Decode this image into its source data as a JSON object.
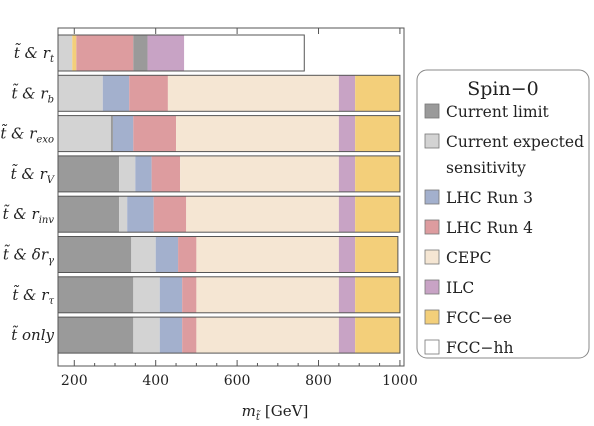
{
  "chart_data": {
    "type": "bar",
    "orientation": "horizontal-stacked",
    "xlabel": "m",
    "xlabel_sub": "t̃",
    "xlabel_unit": "[GeV]",
    "xlim": [
      160,
      1010
    ],
    "xticks": [
      200,
      400,
      600,
      800,
      1000
    ],
    "grid": false,
    "legend_position": "right",
    "legend": {
      "title": "Spin−0",
      "entries": [
        {
          "key": "current_limit",
          "label_lines": [
            "Current limit"
          ],
          "color": "#9a9a9a"
        },
        {
          "key": "current_expected",
          "label_lines": [
            "Current expected",
            "sensitivity"
          ],
          "color": "#d3d3d3"
        },
        {
          "key": "lhc_run3",
          "label_lines": [
            "LHC Run 3"
          ],
          "color": "#a3b0cd"
        },
        {
          "key": "lhc_run4",
          "label_lines": [
            "LHC Run 4"
          ],
          "color": "#dd9c9f"
        },
        {
          "key": "cepc",
          "label_lines": [
            "CEPC"
          ],
          "color": "#f5e6d3"
        },
        {
          "key": "ilc",
          "label_lines": [
            "ILC"
          ],
          "color": "#c8a3c5"
        },
        {
          "key": "fccee",
          "label_lines": [
            "FCC−ee"
          ],
          "color": "#f3cf7a"
        },
        {
          "key": "fcchh",
          "label_lines": [
            "FCC−hh"
          ],
          "color": "#ffffff"
        }
      ]
    },
    "rows": [
      {
        "label": {
          "main": "t̃ & r",
          "sub": "t"
        },
        "segments": [
          {
            "key": "current_expected",
            "from": 160,
            "to": 195
          },
          {
            "key": "fccee",
            "from": 195,
            "to": 205
          },
          {
            "key": "lhc_run4",
            "from": 205,
            "to": 345
          },
          {
            "key": "current_limit",
            "from": 345,
            "to": 380
          },
          {
            "key": "ilc",
            "from": 380,
            "to": 470
          },
          {
            "key": "fcchh",
            "from": 470,
            "to": 765
          }
        ]
      },
      {
        "label": {
          "main": "t̃ & r",
          "sub": "b"
        },
        "segments": [
          {
            "key": "current_expected",
            "from": 160,
            "to": 270
          },
          {
            "key": "lhc_run3",
            "from": 270,
            "to": 335
          },
          {
            "key": "lhc_run4",
            "from": 335,
            "to": 430
          },
          {
            "key": "cepc",
            "from": 430,
            "to": 850
          },
          {
            "key": "ilc",
            "from": 850,
            "to": 890
          },
          {
            "key": "fccee",
            "from": 890,
            "to": 1000
          }
        ]
      },
      {
        "label": {
          "main": "t̃ & r",
          "sub": "exo"
        },
        "segments": [
          {
            "key": "current_expected",
            "from": 160,
            "to": 290
          },
          {
            "key": "current_limit",
            "from": 290,
            "to": 295
          },
          {
            "key": "lhc_run3",
            "from": 295,
            "to": 345
          },
          {
            "key": "lhc_run4",
            "from": 345,
            "to": 450
          },
          {
            "key": "cepc",
            "from": 450,
            "to": 850
          },
          {
            "key": "ilc",
            "from": 850,
            "to": 890
          },
          {
            "key": "fccee",
            "from": 890,
            "to": 1000
          }
        ]
      },
      {
        "label": {
          "main": "t̃ & r",
          "sub": "V"
        },
        "segments": [
          {
            "key": "current_limit",
            "from": 160,
            "to": 310
          },
          {
            "key": "current_expected",
            "from": 310,
            "to": 350
          },
          {
            "key": "lhc_run3",
            "from": 350,
            "to": 390
          },
          {
            "key": "lhc_run4",
            "from": 390,
            "to": 460
          },
          {
            "key": "cepc",
            "from": 460,
            "to": 850
          },
          {
            "key": "ilc",
            "from": 850,
            "to": 890
          },
          {
            "key": "fccee",
            "from": 890,
            "to": 1000
          }
        ]
      },
      {
        "label": {
          "main": "t̃ & r",
          "sub": "inv"
        },
        "segments": [
          {
            "key": "current_limit",
            "from": 160,
            "to": 310
          },
          {
            "key": "current_expected",
            "from": 310,
            "to": 330
          },
          {
            "key": "lhc_run3",
            "from": 330,
            "to": 395
          },
          {
            "key": "lhc_run4",
            "from": 395,
            "to": 475
          },
          {
            "key": "cepc",
            "from": 475,
            "to": 850
          },
          {
            "key": "ilc",
            "from": 850,
            "to": 890
          },
          {
            "key": "fccee",
            "from": 890,
            "to": 1000
          }
        ]
      },
      {
        "label": {
          "main": "t̃ & δr",
          "sub": "γ"
        },
        "segments": [
          {
            "key": "current_limit",
            "from": 160,
            "to": 340
          },
          {
            "key": "current_expected",
            "from": 340,
            "to": 400
          },
          {
            "key": "lhc_run3",
            "from": 400,
            "to": 455
          },
          {
            "key": "lhc_run4",
            "from": 455,
            "to": 500
          },
          {
            "key": "cepc",
            "from": 500,
            "to": 850
          },
          {
            "key": "ilc",
            "from": 850,
            "to": 890
          },
          {
            "key": "fccee",
            "from": 890,
            "to": 995
          }
        ]
      },
      {
        "label": {
          "main": "t̃ & r",
          "sub": "τ"
        },
        "segments": [
          {
            "key": "current_limit",
            "from": 160,
            "to": 345
          },
          {
            "key": "current_expected",
            "from": 345,
            "to": 410
          },
          {
            "key": "lhc_run3",
            "from": 410,
            "to": 465
          },
          {
            "key": "lhc_run4",
            "from": 465,
            "to": 500
          },
          {
            "key": "cepc",
            "from": 500,
            "to": 850
          },
          {
            "key": "ilc",
            "from": 850,
            "to": 890
          },
          {
            "key": "fccee",
            "from": 890,
            "to": 1000
          }
        ]
      },
      {
        "label": {
          "main": "t̃ only",
          "sub": ""
        },
        "segments": [
          {
            "key": "current_limit",
            "from": 160,
            "to": 345
          },
          {
            "key": "current_expected",
            "from": 345,
            "to": 410
          },
          {
            "key": "lhc_run3",
            "from": 410,
            "to": 465
          },
          {
            "key": "lhc_run4",
            "from": 465,
            "to": 500
          },
          {
            "key": "cepc",
            "from": 500,
            "to": 850
          },
          {
            "key": "ilc",
            "from": 850,
            "to": 890
          },
          {
            "key": "fccee",
            "from": 890,
            "to": 1000
          }
        ]
      }
    ]
  }
}
